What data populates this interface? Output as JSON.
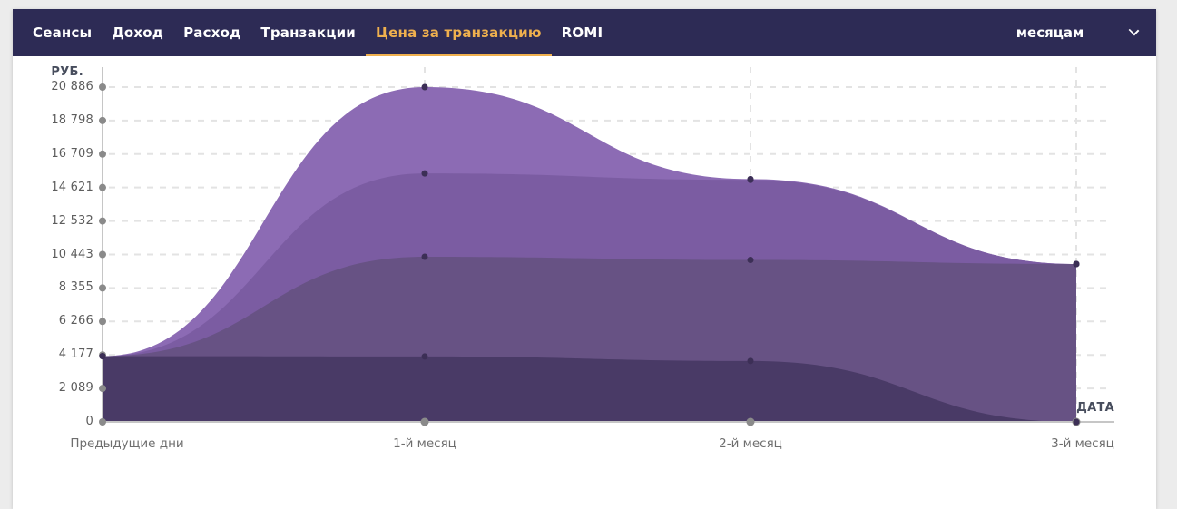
{
  "header": {
    "tabs": [
      {
        "label": "Сеансы",
        "active": false
      },
      {
        "label": "Доход",
        "active": false
      },
      {
        "label": "Расход",
        "active": false
      },
      {
        "label": "Транзакции",
        "active": false
      },
      {
        "label": "Цена за транзакцию",
        "active": true
      },
      {
        "label": "ROMI",
        "active": false
      }
    ],
    "period_select": {
      "value": "месяцам"
    },
    "colors": {
      "bg": "#2d2b55",
      "tab_text": "#ffffff",
      "active_tab": "#efb04e"
    }
  },
  "chart_data": {
    "type": "area",
    "title": "",
    "ylabel": "РУБ.",
    "xlabel": "ДАТА",
    "categories": [
      "Предыдущие дни",
      "1-й месяц",
      "2-й месяц",
      "3-й месяц"
    ],
    "ylim": [
      0,
      20886
    ],
    "y_ticks": {
      "values": [
        0,
        2089,
        4177,
        6266,
        8355,
        10443,
        12532,
        14621,
        16709,
        18798,
        20886
      ],
      "labels": [
        "0",
        "2 089",
        "4 177",
        "6 266",
        "8 355",
        "10 443",
        "12 532",
        "14 621",
        "16 709",
        "18 798",
        "20 886"
      ]
    },
    "grid": "dashed",
    "legend": "none",
    "series": [
      {
        "values": [
          4100,
          20886,
          15150,
          9850
        ],
        "color": "#8c6bb4"
      },
      {
        "values": [
          4100,
          15500,
          15100,
          9850
        ],
        "color": "#7b5ca2"
      },
      {
        "values": [
          4100,
          10300,
          10100,
          9850
        ],
        "color": "#675284"
      },
      {
        "values": [
          4100,
          4080,
          3800,
          0
        ],
        "color": "#493a66"
      }
    ],
    "marker_color": "#3c2f56",
    "axis_colors": {
      "axis_line": "#c6c6c6",
      "tick_dot": "#8a8a8a",
      "grid_line": "#e3e3e3"
    }
  }
}
